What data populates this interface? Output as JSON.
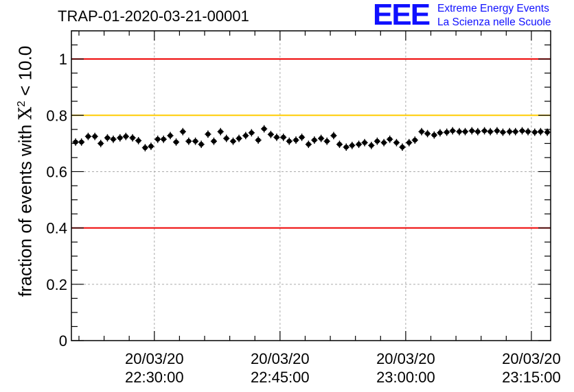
{
  "title": "TRAP-01-2020-03-21-00001",
  "logo": {
    "mark": "EEE",
    "line1": "Extreme Energy Events",
    "line2": "La Scienza nelle Scuole",
    "color": "#1010ff"
  },
  "chart_data": {
    "type": "scatter",
    "title": "TRAP-01-2020-03-21-00001",
    "ylabel": {
      "prefix": "fraction of events with ",
      "symbol": "X",
      "sup": "2",
      "suffix": " < 10.0"
    },
    "ylim": [
      0,
      1.1
    ],
    "xlim_minutes": [
      20.1,
      77.3
    ],
    "yticks": [
      {
        "value": 0,
        "label": "0"
      },
      {
        "value": 0.2,
        "label": "0.2"
      },
      {
        "value": 0.4,
        "label": "0.4"
      },
      {
        "value": 0.6,
        "label": "0.6"
      },
      {
        "value": 0.8,
        "label": "0.8"
      },
      {
        "value": 1,
        "label": "1"
      }
    ],
    "xticks": [
      {
        "minutes": 30,
        "date": "20/03/20",
        "time": "22:30:00"
      },
      {
        "minutes": 45,
        "date": "20/03/20",
        "time": "22:45:00"
      },
      {
        "minutes": 60,
        "date": "20/03/20",
        "time": "23:00:00"
      },
      {
        "minutes": 75,
        "date": "20/03/20",
        "time": "23:15:00"
      }
    ],
    "x_reference": "minutes after 22:00:00 on 20/03/20",
    "reference_lines": [
      {
        "value": 1.0,
        "color": "#ee0000"
      },
      {
        "value": 0.8,
        "color": "#ffcc00"
      },
      {
        "value": 0.4,
        "color": "#ee0000"
      }
    ],
    "grid": true,
    "point_color": "#000000",
    "bin_width_minutes": 0.75,
    "y_error": 0.013,
    "series": [
      {
        "name": "fraction",
        "x": [
          20.6,
          21.3,
          22.1,
          22.9,
          23.6,
          24.4,
          25.1,
          25.9,
          26.6,
          27.4,
          28.1,
          28.9,
          29.6,
          30.4,
          31.1,
          31.9,
          32.6,
          33.4,
          34.1,
          34.9,
          35.6,
          36.4,
          37.1,
          37.9,
          38.6,
          39.4,
          40.1,
          40.9,
          41.6,
          42.4,
          43.1,
          43.9,
          44.6,
          45.4,
          46.1,
          46.9,
          47.6,
          48.4,
          49.1,
          49.9,
          50.6,
          51.4,
          52.1,
          52.9,
          53.6,
          54.4,
          55.1,
          55.9,
          56.6,
          57.4,
          58.1,
          58.9,
          59.6,
          60.4,
          61.1,
          61.9,
          62.6,
          63.4,
          64.1,
          64.9,
          65.6,
          66.4,
          67.1,
          67.9,
          68.6,
          69.4,
          70.1,
          70.9,
          71.6,
          72.4,
          73.1,
          73.9,
          74.6,
          75.4,
          76.1,
          76.9
        ],
        "y": [
          0.705,
          0.705,
          0.725,
          0.725,
          0.7,
          0.72,
          0.715,
          0.72,
          0.725,
          0.72,
          0.71,
          0.685,
          0.69,
          0.715,
          0.715,
          0.728,
          0.705,
          0.742,
          0.708,
          0.708,
          0.697,
          0.733,
          0.708,
          0.742,
          0.718,
          0.708,
          0.718,
          0.728,
          0.738,
          0.712,
          0.752,
          0.732,
          0.722,
          0.722,
          0.708,
          0.712,
          0.722,
          0.697,
          0.712,
          0.718,
          0.708,
          0.728,
          0.697,
          0.687,
          0.693,
          0.697,
          0.703,
          0.693,
          0.708,
          0.703,
          0.715,
          0.703,
          0.687,
          0.703,
          0.712,
          0.742,
          0.735,
          0.73,
          0.738,
          0.74,
          0.745,
          0.742,
          0.742,
          0.745,
          0.742,
          0.745,
          0.742,
          0.745,
          0.74,
          0.742,
          0.742,
          0.745,
          0.742,
          0.74,
          0.742,
          0.74
        ]
      }
    ]
  }
}
